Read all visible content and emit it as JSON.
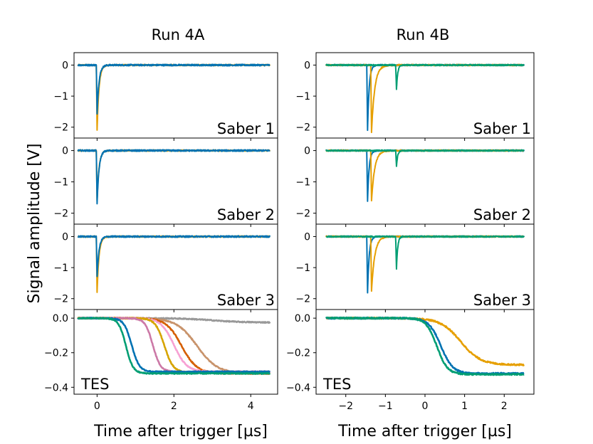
{
  "figure": {
    "column_titles": [
      "Run 4A",
      "Run 4B"
    ],
    "ylabel": "Signal amplitude [V]",
    "xlabel": "Time after trigger [µs]"
  },
  "colors": {
    "blue": "#0072b2",
    "orange": "#e69f00",
    "green": "#009e73",
    "vermillion": "#d55e00",
    "pink": "#cc79a7",
    "lightpink": "#f7a1d3",
    "gold": "#d6a400",
    "tan": "#c8936b",
    "gray": "#999999"
  },
  "chart_data": [
    {
      "type": "line",
      "column": 0,
      "row": 0,
      "panel_label": "Saber 1",
      "xlim": [
        -0.6,
        4.7
      ],
      "ylim": [
        -2.35,
        0.4
      ],
      "yticks": [
        0,
        -1,
        -2
      ],
      "xticks": [
        0,
        2,
        4
      ],
      "show_xticks": false,
      "series": [
        {
          "color": "orange",
          "baseline": 0,
          "noise": 0.02,
          "dips": [
            {
              "x": 0.0,
              "depth": -2.1,
              "tau": 0.05
            }
          ],
          "x": [
            -0.5,
            4.5
          ]
        },
        {
          "color": "blue",
          "baseline": 0,
          "noise": 0.025,
          "dips": [
            {
              "x": 0.0,
              "depth": -1.55,
              "tau": 0.05
            }
          ],
          "x": [
            -0.5,
            4.5
          ]
        }
      ]
    },
    {
      "type": "line",
      "column": 0,
      "row": 1,
      "panel_label": "Saber 2",
      "xlim": [
        -0.6,
        4.7
      ],
      "ylim": [
        -2.35,
        0.4
      ],
      "yticks": [
        0,
        -1,
        -2
      ],
      "xticks": [
        0,
        2,
        4
      ],
      "show_xticks": false,
      "series": [
        {
          "color": "orange",
          "baseline": 0,
          "noise": 0.02,
          "dips": [
            {
              "x": 0.0,
              "depth": -1.6,
              "tau": 0.05
            }
          ],
          "x": [
            -0.5,
            4.5
          ]
        },
        {
          "color": "blue",
          "baseline": 0,
          "noise": 0.025,
          "dips": [
            {
              "x": 0.0,
              "depth": -1.7,
              "tau": 0.05
            }
          ],
          "x": [
            -0.5,
            4.5
          ]
        }
      ]
    },
    {
      "type": "line",
      "column": 0,
      "row": 2,
      "panel_label": "Saber 3",
      "xlim": [
        -0.6,
        4.7
      ],
      "ylim": [
        -2.35,
        0.4
      ],
      "yticks": [
        0,
        -1,
        -2
      ],
      "xticks": [
        0,
        2,
        4
      ],
      "show_xticks": false,
      "series": [
        {
          "color": "orange",
          "baseline": 0,
          "noise": 0.02,
          "dips": [
            {
              "x": 0.0,
              "depth": -1.8,
              "tau": 0.05
            }
          ],
          "x": [
            -0.5,
            4.5
          ]
        },
        {
          "color": "blue",
          "baseline": 0,
          "noise": 0.025,
          "dips": [
            {
              "x": 0.0,
              "depth": -1.3,
              "tau": 0.05
            }
          ],
          "x": [
            -0.5,
            4.5
          ]
        }
      ]
    },
    {
      "type": "line",
      "column": 0,
      "row": 3,
      "panel_label": "TES",
      "xlim": [
        -0.6,
        4.7
      ],
      "ylim": [
        -0.44,
        0.05
      ],
      "yticks": [
        0.0,
        -0.2,
        -0.4
      ],
      "xticks": [
        0,
        2,
        4
      ],
      "show_xticks": true,
      "series": [
        {
          "color": "gray",
          "x": [
            -0.5,
            4.5
          ],
          "noise": 0.003,
          "sigmoid": {
            "x0": 3.0,
            "width": 1.2,
            "amp": -0.025
          }
        },
        {
          "color": "tan",
          "x": [
            -0.5,
            4.5
          ],
          "noise": 0.003,
          "sigmoid": {
            "x0": 2.6,
            "width": 0.8,
            "amp": -0.32
          }
        },
        {
          "color": "vermillion",
          "x": [
            -0.5,
            4.5
          ],
          "noise": 0.003,
          "sigmoid": {
            "x0": 2.2,
            "width": 0.6,
            "amp": -0.32
          }
        },
        {
          "color": "lightpink",
          "x": [
            -0.5,
            4.5
          ],
          "noise": 0.003,
          "sigmoid": {
            "x0": 2.0,
            "width": 0.5,
            "amp": -0.31
          }
        },
        {
          "color": "gold",
          "x": [
            -0.5,
            4.5
          ],
          "noise": 0.003,
          "sigmoid": {
            "x0": 1.75,
            "width": 0.35,
            "amp": -0.315
          }
        },
        {
          "color": "pink",
          "x": [
            -0.5,
            4.5
          ],
          "noise": 0.003,
          "sigmoid": {
            "x0": 1.45,
            "width": 0.3,
            "amp": -0.31
          }
        },
        {
          "color": "blue",
          "x": [
            -0.5,
            4.5
          ],
          "noise": 0.003,
          "sigmoid": {
            "x0": 0.9,
            "width": 0.3,
            "amp": -0.31
          }
        },
        {
          "color": "green",
          "x": [
            -0.5,
            4.5
          ],
          "noise": 0.003,
          "sigmoid": {
            "x0": 0.75,
            "width": 0.28,
            "amp": -0.32
          }
        }
      ]
    },
    {
      "type": "line",
      "column": 1,
      "row": 0,
      "panel_label": "Saber 1",
      "xlim": [
        -2.75,
        2.75
      ],
      "ylim": [
        -2.35,
        0.4
      ],
      "yticks": [
        0,
        -1,
        -2
      ],
      "xticks": [
        -2,
        -1,
        0,
        1,
        2
      ],
      "show_xticks": false,
      "series": [
        {
          "color": "blue",
          "baseline": 0,
          "noise": 0.02,
          "dips": [
            {
              "x": -1.45,
              "depth": -2.1,
              "tau": 0.04
            }
          ],
          "x": [
            -2.5,
            2.5
          ]
        },
        {
          "color": "orange",
          "baseline": 0,
          "noise": 0.02,
          "dips": [
            {
              "x": -1.35,
              "depth": -2.15,
              "tau": 0.08
            }
          ],
          "x": [
            -2.5,
            2.5
          ]
        },
        {
          "color": "green",
          "baseline": 0,
          "noise": 0.02,
          "dips": [
            {
              "x": -0.72,
              "depth": -0.8,
              "tau": 0.03
            }
          ],
          "x": [
            -2.5,
            2.5
          ]
        }
      ]
    },
    {
      "type": "line",
      "column": 1,
      "row": 1,
      "panel_label": "Saber 2",
      "xlim": [
        -2.75,
        2.75
      ],
      "ylim": [
        -2.35,
        0.4
      ],
      "yticks": [
        0,
        -1,
        -2
      ],
      "xticks": [
        -2,
        -1,
        0,
        1,
        2
      ],
      "show_xticks": false,
      "series": [
        {
          "color": "blue",
          "baseline": 0,
          "noise": 0.02,
          "dips": [
            {
              "x": -1.45,
              "depth": -1.6,
              "tau": 0.04
            }
          ],
          "x": [
            -2.5,
            2.5
          ]
        },
        {
          "color": "orange",
          "baseline": 0,
          "noise": 0.02,
          "dips": [
            {
              "x": -1.35,
              "depth": -1.6,
              "tau": 0.08
            }
          ],
          "x": [
            -2.5,
            2.5
          ]
        },
        {
          "color": "green",
          "baseline": 0,
          "noise": 0.02,
          "dips": [
            {
              "x": -0.72,
              "depth": -0.5,
              "tau": 0.03
            }
          ],
          "x": [
            -2.5,
            2.5
          ]
        }
      ]
    },
    {
      "type": "line",
      "column": 1,
      "row": 2,
      "panel_label": "Saber 3",
      "xlim": [
        -2.75,
        2.75
      ],
      "ylim": [
        -2.35,
        0.4
      ],
      "yticks": [
        0,
        -1,
        -2
      ],
      "xticks": [
        -2,
        -1,
        0,
        1,
        2
      ],
      "show_xticks": false,
      "series": [
        {
          "color": "blue",
          "baseline": 0,
          "noise": 0.02,
          "dips": [
            {
              "x": -1.45,
              "depth": -1.8,
              "tau": 0.04
            }
          ],
          "x": [
            -2.5,
            2.5
          ]
        },
        {
          "color": "orange",
          "baseline": 0,
          "noise": 0.02,
          "dips": [
            {
              "x": -1.35,
              "depth": -1.75,
              "tau": 0.08
            }
          ],
          "x": [
            -2.5,
            2.5
          ]
        },
        {
          "color": "green",
          "baseline": 0,
          "noise": 0.02,
          "dips": [
            {
              "x": -0.72,
              "depth": -1.05,
              "tau": 0.03
            }
          ],
          "x": [
            -2.5,
            2.5
          ]
        }
      ]
    },
    {
      "type": "line",
      "column": 1,
      "row": 3,
      "panel_label": "TES",
      "xlim": [
        -2.75,
        2.75
      ],
      "ylim": [
        -0.44,
        0.05
      ],
      "yticks": [
        0.0,
        -0.2,
        -0.4
      ],
      "xticks": [
        -2,
        -1,
        0,
        1,
        2
      ],
      "show_xticks": true,
      "series": [
        {
          "color": "orange",
          "x": [
            -2.5,
            2.5
          ],
          "noise": 0.004,
          "sigmoid": {
            "x0": 0.9,
            "width": 0.75,
            "amp": -0.27
          }
        },
        {
          "color": "blue",
          "x": [
            -2.5,
            2.5
          ],
          "noise": 0.004,
          "sigmoid": {
            "x0": 0.4,
            "width": 0.45,
            "amp": -0.32
          }
        },
        {
          "color": "green",
          "x": [
            -2.5,
            2.5
          ],
          "noise": 0.004,
          "sigmoid": {
            "x0": 0.3,
            "width": 0.4,
            "amp": -0.325
          }
        }
      ]
    }
  ]
}
